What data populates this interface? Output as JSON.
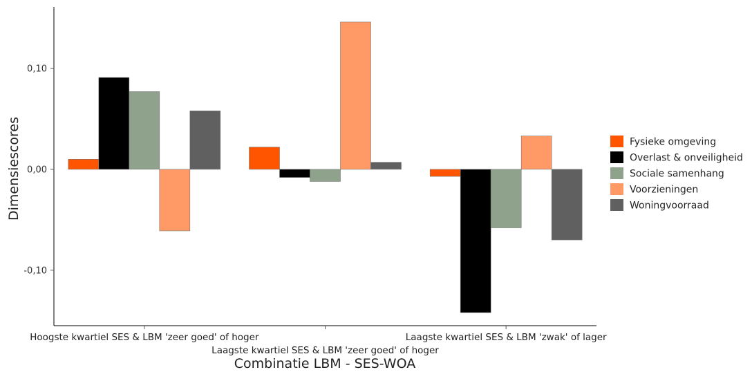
{
  "chart_data": {
    "type": "bar",
    "xlabel": "Combinatie LBM - SES-WOA",
    "ylabel": "Dimensiescores",
    "categories": [
      "Hoogste kwartiel SES & LBM 'zeer goed' of hoger",
      "Laagste kwartiel SES & LBM 'zeer goed' of hoger",
      "Laagste kwartiel SES & LBM 'zwak' of lager"
    ],
    "series": [
      {
        "name": "Fysieke omgeving",
        "color": "#ff5500",
        "values": [
          0.01,
          0.022,
          -0.007
        ]
      },
      {
        "name": "Overlast & onveiligheid",
        "color": "#000000",
        "values": [
          0.091,
          -0.008,
          -0.142
        ]
      },
      {
        "name": "Sociale samenhang",
        "color": "#8fa38c",
        "values": [
          0.077,
          -0.012,
          -0.058
        ]
      },
      {
        "name": "Voorzieningen",
        "color": "#ff9966",
        "values": [
          -0.061,
          0.146,
          0.033
        ]
      },
      {
        "name": "Woningvoorraad",
        "color": "#606060",
        "values": [
          0.058,
          0.007,
          -0.07
        ]
      }
    ],
    "yticks": [
      {
        "value": 0.1,
        "label": "0,10"
      },
      {
        "value": 0.0,
        "label": "0,00"
      },
      {
        "value": -0.1,
        "label": "-0,10"
      }
    ],
    "ylim": [
      -0.155,
      0.161
    ],
    "grid": false,
    "legend": "right"
  }
}
